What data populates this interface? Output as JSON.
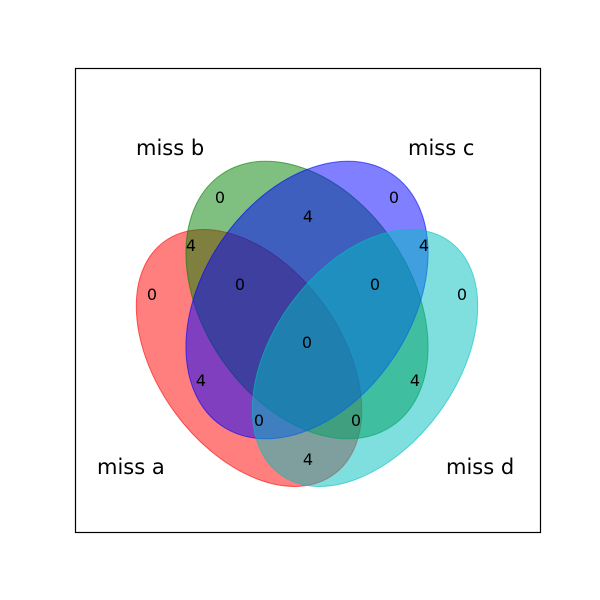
{
  "chart_data": {
    "type": "venn",
    "title": "",
    "sets": [
      {
        "key": "a",
        "label": "miss a",
        "color": "#ff0000"
      },
      {
        "key": "b",
        "label": "miss b",
        "color": "#008000"
      },
      {
        "key": "c",
        "label": "miss c",
        "color": "#0000ff"
      },
      {
        "key": "d",
        "label": "miss d",
        "color": "#00bfbf"
      }
    ],
    "regions": {
      "a": "0",
      "b": "0",
      "c": "0",
      "d": "0",
      "ab": "4",
      "bc": "4",
      "cd": "4",
      "ad": "4",
      "ac": "4",
      "bd": "4",
      "abc": "0",
      "bcd": "0",
      "abd": "0",
      "acd": "0",
      "abcd": "0"
    }
  }
}
